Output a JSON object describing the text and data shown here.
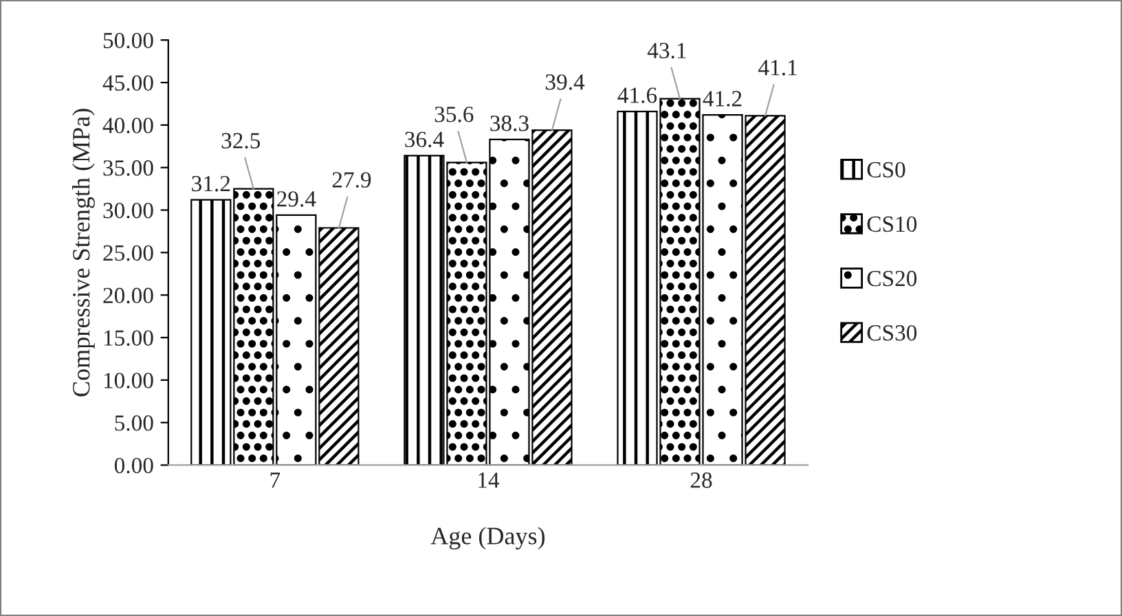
{
  "chart_data": {
    "type": "bar",
    "xlabel": "Age (Days)",
    "ylabel": "Compressive Strength (MPa)",
    "categories": [
      "7",
      "14",
      "28"
    ],
    "series": [
      {
        "name": "CS0",
        "color": "#000000",
        "values": [
          31.2,
          36.4,
          41.6
        ]
      },
      {
        "name": "CS10",
        "color": "#000000",
        "values": [
          32.5,
          35.6,
          43.1
        ]
      },
      {
        "name": "CS20",
        "color": "#000000",
        "values": [
          29.4,
          38.3,
          41.2
        ]
      },
      {
        "name": "CS30",
        "color": "#000000",
        "values": [
          27.9,
          39.4,
          41.1
        ]
      }
    ],
    "ylim": [
      0,
      50
    ],
    "yticks": [
      {
        "value": 0,
        "label": "0.00"
      },
      {
        "value": 5,
        "label": "5.00"
      },
      {
        "value": 10,
        "label": "10.00"
      },
      {
        "value": 15,
        "label": "15.00"
      },
      {
        "value": 20,
        "label": "20.00"
      },
      {
        "value": 25,
        "label": "25.00"
      },
      {
        "value": 30,
        "label": "30.00"
      },
      {
        "value": 35,
        "label": "35.00"
      },
      {
        "value": 40,
        "label": "40.00"
      },
      {
        "value": 45,
        "label": "45.00"
      },
      {
        "value": 50,
        "label": "50.00"
      }
    ],
    "data_labels": true,
    "grid": false,
    "legend": "right"
  }
}
